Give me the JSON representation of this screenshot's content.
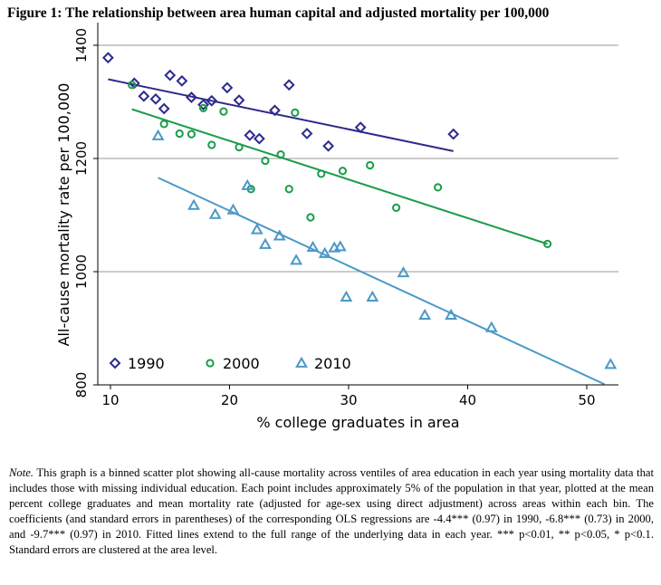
{
  "figure_title": "Figure 1: The relationship between area human capital and adjusted mortality per 100,000",
  "note": {
    "label": "Note.",
    "text": " This graph is a binned scatter plot showing all-cause mortality across ventiles of area education in each year using mortality data that includes those with missing individual education. Each point includes approximately 5% of the population in that year, plotted at the mean percent college graduates and mean mortality rate (adjusted for age-sex using direct adjustment) across areas within each bin. The coefficients (and standard errors in parentheses) of the corresponding OLS regressions are -4.4*** (0.97) in 1990, -6.8*** (0.73) in 2000, and -9.7*** (0.97) in 2010. Fitted lines extend to the full range of the underlying data in each year. *** p<0.01, ** p<0.05, * p<0.1. Standard errors are clustered at the area level."
  },
  "chart_data": {
    "type": "scatter",
    "title": "Figure 1: The relationship between area human capital and adjusted mortality per 100,000",
    "xlabel": "% college graduates in area",
    "ylabel": "All-cause mortality rate per 100,000",
    "xlim": [
      8.5,
      53
    ],
    "ylim": [
      800,
      1400
    ],
    "xticks": [
      10,
      20,
      30,
      40,
      50
    ],
    "yticks": [
      800,
      1000,
      1200,
      1400
    ],
    "grid": "horizontal",
    "legend_position": "bottom-left inside plot",
    "series": [
      {
        "name": "1990",
        "marker": "diamond",
        "color": "#2e2a8c",
        "points": [
          [
            9.8,
            1378
          ],
          [
            12.0,
            1333
          ],
          [
            12.8,
            1310
          ],
          [
            13.8,
            1305
          ],
          [
            14.5,
            1288
          ],
          [
            15.0,
            1347
          ],
          [
            16.0,
            1337
          ],
          [
            16.8,
            1308
          ],
          [
            17.8,
            1295
          ],
          [
            18.5,
            1302
          ],
          [
            19.8,
            1325
          ],
          [
            20.8,
            1303
          ],
          [
            21.7,
            1241
          ],
          [
            22.5,
            1235
          ],
          [
            23.8,
            1285
          ],
          [
            25.0,
            1330
          ],
          [
            26.5,
            1244
          ],
          [
            28.3,
            1222
          ],
          [
            31.0,
            1255
          ],
          [
            38.8,
            1243
          ]
        ],
        "fit": [
          [
            9.8,
            1340
          ],
          [
            38.8,
            1213
          ]
        ]
      },
      {
        "name": "2000",
        "marker": "circle",
        "color": "#1a9c4a",
        "points": [
          [
            11.8,
            1330
          ],
          [
            14.5,
            1261
          ],
          [
            15.8,
            1244
          ],
          [
            16.8,
            1243
          ],
          [
            17.8,
            1289
          ],
          [
            18.5,
            1224
          ],
          [
            19.5,
            1283
          ],
          [
            20.8,
            1220
          ],
          [
            21.8,
            1146
          ],
          [
            23.0,
            1196
          ],
          [
            24.3,
            1207
          ],
          [
            25.0,
            1146
          ],
          [
            25.5,
            1281
          ],
          [
            26.8,
            1096
          ],
          [
            27.7,
            1173
          ],
          [
            29.5,
            1178
          ],
          [
            31.8,
            1188
          ],
          [
            34.0,
            1113
          ],
          [
            37.5,
            1149
          ],
          [
            46.7,
            1049
          ]
        ],
        "fit": [
          [
            11.8,
            1287
          ],
          [
            46.7,
            1049
          ]
        ]
      },
      {
        "name": "2010",
        "marker": "triangle",
        "color": "#4a98c8",
        "points": [
          [
            14.0,
            1240
          ],
          [
            17.0,
            1117
          ],
          [
            18.8,
            1101
          ],
          [
            20.3,
            1109
          ],
          [
            21.5,
            1152
          ],
          [
            22.3,
            1074
          ],
          [
            23.0,
            1048
          ],
          [
            24.2,
            1063
          ],
          [
            25.6,
            1020
          ],
          [
            27.0,
            1043
          ],
          [
            28.0,
            1032
          ],
          [
            28.8,
            1042
          ],
          [
            29.3,
            1044
          ],
          [
            29.8,
            955
          ],
          [
            32.0,
            955
          ],
          [
            34.6,
            998
          ],
          [
            36.4,
            923
          ],
          [
            38.6,
            923
          ],
          [
            42.0,
            901
          ],
          [
            52.0,
            836
          ]
        ],
        "fit": [
          [
            14.0,
            1166
          ],
          [
            51.5,
            801
          ]
        ]
      }
    ]
  }
}
